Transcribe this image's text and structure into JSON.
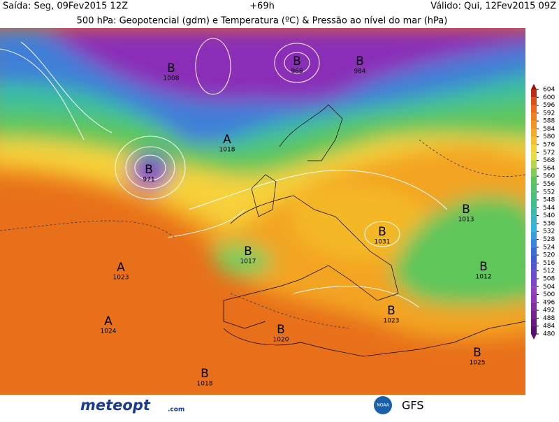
{
  "header": {
    "issued": "Saída: Seg, 09Fev2015 12Z",
    "lead": "+69h",
    "valid": "Válido: Qui, 12Fev2015 09Z",
    "title": "500 hPa: Geopotencial (gdm) e Temperatura (ºC) & Pressão ao nível do mar (hPa)"
  },
  "colorbar": {
    "ticks": [
      480,
      484,
      488,
      492,
      496,
      500,
      504,
      508,
      512,
      516,
      520,
      524,
      528,
      532,
      536,
      540,
      544,
      548,
      552,
      556,
      560,
      564,
      568,
      572,
      576,
      580,
      584,
      588,
      592,
      596,
      600,
      604
    ]
  },
  "centers": [
    {
      "letter": "B",
      "value": "1008"
    },
    {
      "letter": "A",
      "value": "1018"
    },
    {
      "letter": "B",
      "value": "971"
    },
    {
      "letter": "B",
      "value": "968"
    },
    {
      "letter": "B",
      "value": "984"
    },
    {
      "letter": "B",
      "value": "1017"
    },
    {
      "letter": "A",
      "value": "1023"
    },
    {
      "letter": "A",
      "value": "1024"
    },
    {
      "letter": "B",
      "value": "1031"
    },
    {
      "letter": "B",
      "value": "1013"
    },
    {
      "letter": "B",
      "value": "1012"
    },
    {
      "letter": "B",
      "value": "1023"
    },
    {
      "letter": "B",
      "value": "1020"
    },
    {
      "letter": "B",
      "value": "1018"
    },
    {
      "letter": "B",
      "value": "1025"
    }
  ],
  "footer": {
    "brand": "meteopt",
    "brand_suffix": ".com",
    "agency": "NOAA",
    "model": "GFS"
  }
}
